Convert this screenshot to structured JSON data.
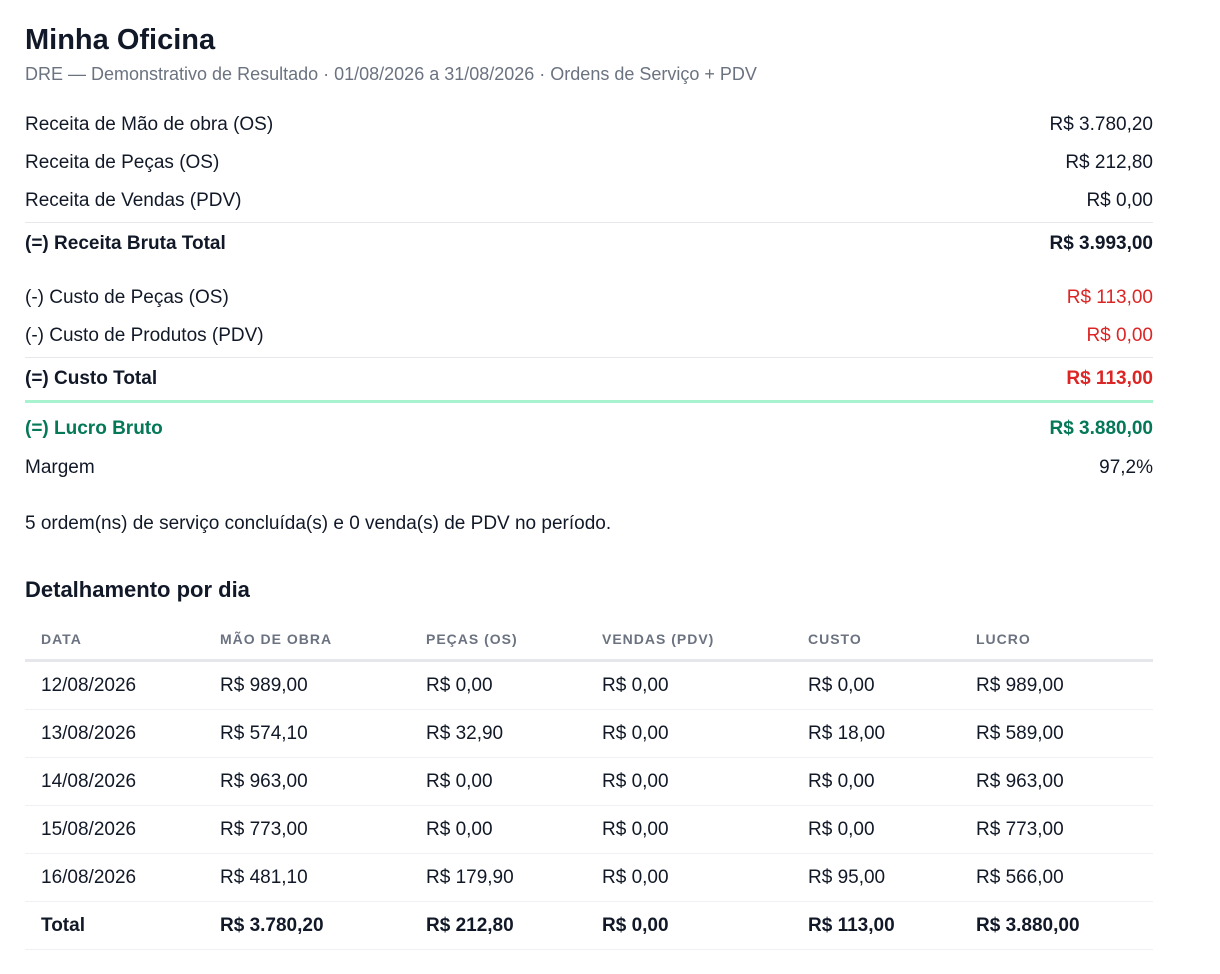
{
  "header": {
    "title": "Minha Oficina",
    "subtitle": "DRE — Demonstrativo de Resultado · 01/08/2026 a 31/08/2026 · Ordens de Serviço + PDV"
  },
  "dre": {
    "receita_mao_obra": {
      "label": "Receita de Mão de obra (OS)",
      "value": "R$ 3.780,20"
    },
    "receita_pecas": {
      "label": "Receita de Peças (OS)",
      "value": "R$ 212,80"
    },
    "receita_vendas": {
      "label": "Receita de Vendas (PDV)",
      "value": "R$ 0,00"
    },
    "receita_bruta": {
      "label": "(=) Receita Bruta Total",
      "value": "R$ 3.993,00"
    },
    "custo_pecas": {
      "label": "(-) Custo de Peças (OS)",
      "value": "R$ 113,00"
    },
    "custo_produtos": {
      "label": "(-) Custo de Produtos (PDV)",
      "value": "R$ 0,00"
    },
    "custo_total": {
      "label": "(=) Custo Total",
      "value": "R$ 113,00"
    },
    "lucro_bruto": {
      "label": "(=) Lucro Bruto",
      "value": "R$ 3.880,00"
    },
    "margem": {
      "label": "Margem",
      "value": "97,2%"
    }
  },
  "summary": "5 ordem(ns) de serviço concluída(s) e 0 venda(s) de PDV no período.",
  "daily": {
    "title": "Detalhamento por dia",
    "columns": [
      "DATA",
      "MÃO DE OBRA",
      "PEÇAS (OS)",
      "VENDAS (PDV)",
      "CUSTO",
      "LUCRO"
    ],
    "rows": [
      [
        "12/08/2026",
        "R$ 989,00",
        "R$ 0,00",
        "R$ 0,00",
        "R$ 0,00",
        "R$ 989,00"
      ],
      [
        "13/08/2026",
        "R$ 574,10",
        "R$ 32,90",
        "R$ 0,00",
        "R$ 18,00",
        "R$ 589,00"
      ],
      [
        "14/08/2026",
        "R$ 963,00",
        "R$ 0,00",
        "R$ 0,00",
        "R$ 0,00",
        "R$ 963,00"
      ],
      [
        "15/08/2026",
        "R$ 773,00",
        "R$ 0,00",
        "R$ 0,00",
        "R$ 0,00",
        "R$ 773,00"
      ],
      [
        "16/08/2026",
        "R$ 481,10",
        "R$ 179,90",
        "R$ 0,00",
        "R$ 95,00",
        "R$ 566,00"
      ]
    ],
    "total": [
      "Total",
      "R$ 3.780,20",
      "R$ 212,80",
      "R$ 0,00",
      "R$ 113,00",
      "R$ 3.880,00"
    ]
  }
}
